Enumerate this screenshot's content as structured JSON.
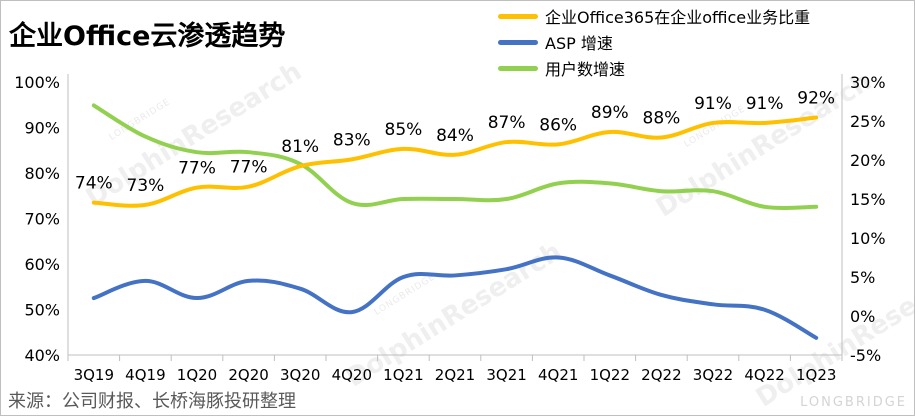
{
  "title": "企业Office云渗透趋势",
  "source": "来源：公司财报、长桥海豚投研整理",
  "watermark": {
    "main": "DolphinResearch",
    "small": "LONGBRIDGE",
    "corner": "LONGBRIDGE"
  },
  "chart_data": {
    "type": "line",
    "categories": [
      "3Q19",
      "4Q19",
      "1Q20",
      "2Q20",
      "3Q20",
      "4Q20",
      "1Q21",
      "2Q21",
      "3Q21",
      "4Q21",
      "1Q22",
      "2Q22",
      "3Q22",
      "4Q22",
      "1Q23"
    ],
    "left_axis": {
      "min": 40,
      "max": 100,
      "step": 10,
      "unit": "%"
    },
    "right_axis": {
      "min": -5,
      "max": 30,
      "step": 5,
      "unit": "%"
    },
    "grid": false,
    "legend_position": "top-right",
    "series": [
      {
        "name": "企业Office365在企业office业务比重",
        "axis": "left",
        "color": "#FFC000",
        "values": [
          73.5,
          73,
          76.8,
          77,
          81.5,
          83,
          85.3,
          84,
          86.8,
          86.3,
          89,
          87.8,
          91,
          91,
          92.2
        ],
        "labels": [
          "74%",
          "73%",
          "77%",
          "77%",
          "81%",
          "83%",
          "85%",
          "84%",
          "87%",
          "86%",
          "89%",
          "88%",
          "91%",
          "91%",
          "92%"
        ]
      },
      {
        "name": "ASP 增速",
        "axis": "right",
        "color": "#4472C4",
        "values": [
          2.3,
          4.5,
          2.3,
          4.5,
          3.5,
          0.5,
          5,
          5.2,
          6,
          7.5,
          5.2,
          2.7,
          1.5,
          0.8,
          -2.8
        ]
      },
      {
        "name": "用户数增速",
        "axis": "right",
        "color": "#92D050",
        "values": [
          27,
          23,
          21,
          21,
          19.5,
          14.5,
          15,
          15,
          15,
          17,
          17,
          16,
          16,
          14,
          14
        ]
      }
    ]
  }
}
